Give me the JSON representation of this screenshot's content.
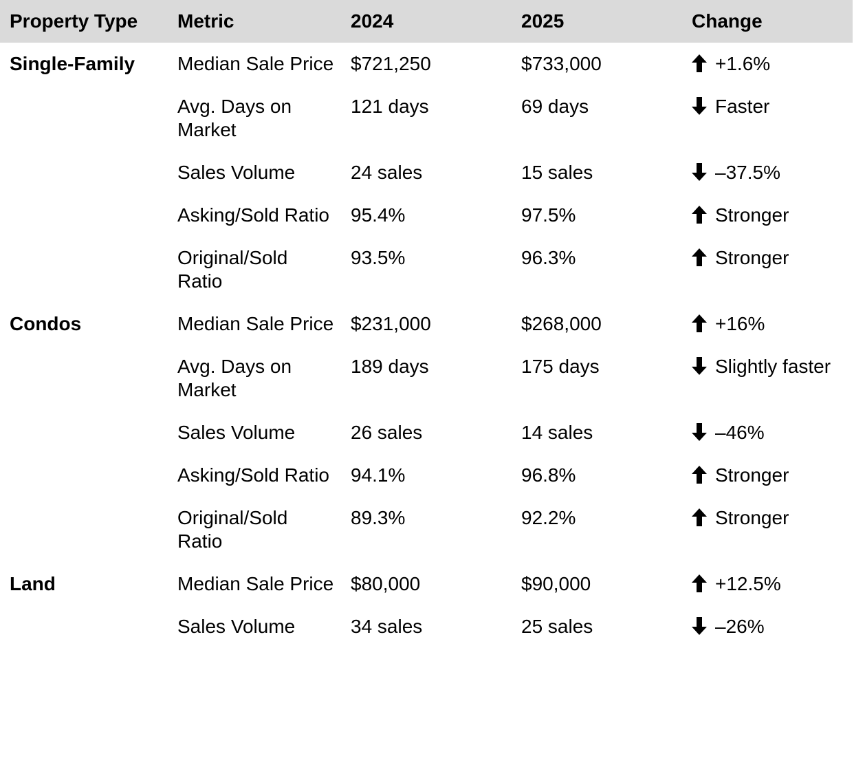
{
  "table": {
    "headers": {
      "property_type": "Property Type",
      "metric": "Metric",
      "year_2024": "2024",
      "year_2025": "2025",
      "change": "Change"
    },
    "rows": [
      {
        "type": "Single-Family",
        "metric": "Median Sale Price",
        "v2024": "$721,250",
        "v2025": "$733,000",
        "direction": "up",
        "change": "+1.6%"
      },
      {
        "type": "",
        "metric": "Avg. Days on Market",
        "v2024": "121 days",
        "v2025": "69 days",
        "direction": "down",
        "change": "Faster"
      },
      {
        "type": "",
        "metric": "Sales Volume",
        "v2024": "24 sales",
        "v2025": "15 sales",
        "direction": "down",
        "change": "–37.5%"
      },
      {
        "type": "",
        "metric": "Asking/Sold Ratio",
        "v2024": "95.4%",
        "v2025": "97.5%",
        "direction": "up",
        "change": "Stronger"
      },
      {
        "type": "",
        "metric": "Original/Sold Ratio",
        "v2024": "93.5%",
        "v2025": "96.3%",
        "direction": "up",
        "change": "Stronger"
      },
      {
        "type": "Condos",
        "metric": "Median Sale Price",
        "v2024": "$231,000",
        "v2025": "$268,000",
        "direction": "up",
        "change": "+16%"
      },
      {
        "type": "",
        "metric": "Avg. Days on Market",
        "v2024": "189 days",
        "v2025": "175 days",
        "direction": "down",
        "change": "Slightly faster"
      },
      {
        "type": "",
        "metric": "Sales Volume",
        "v2024": "26 sales",
        "v2025": "14 sales",
        "direction": "down",
        "change": "–46%"
      },
      {
        "type": "",
        "metric": "Asking/Sold Ratio",
        "v2024": "94.1%",
        "v2025": "96.8%",
        "direction": "up",
        "change": "Stronger"
      },
      {
        "type": "",
        "metric": "Original/Sold Ratio",
        "v2024": "89.3%",
        "v2025": "92.2%",
        "direction": "up",
        "change": "Stronger"
      },
      {
        "type": "Land",
        "metric": "Median Sale Price",
        "v2024": "$80,000",
        "v2025": "$90,000",
        "direction": "up",
        "change": "+12.5%"
      },
      {
        "type": "",
        "metric": "Sales Volume",
        "v2024": "34 sales",
        "v2025": "25 sales",
        "direction": "down",
        "change": "–26%"
      }
    ]
  },
  "icons": {
    "up": "arrow-up-icon",
    "down": "arrow-down-icon"
  },
  "colors": {
    "header_background": "#dadada",
    "text": "#000000"
  }
}
